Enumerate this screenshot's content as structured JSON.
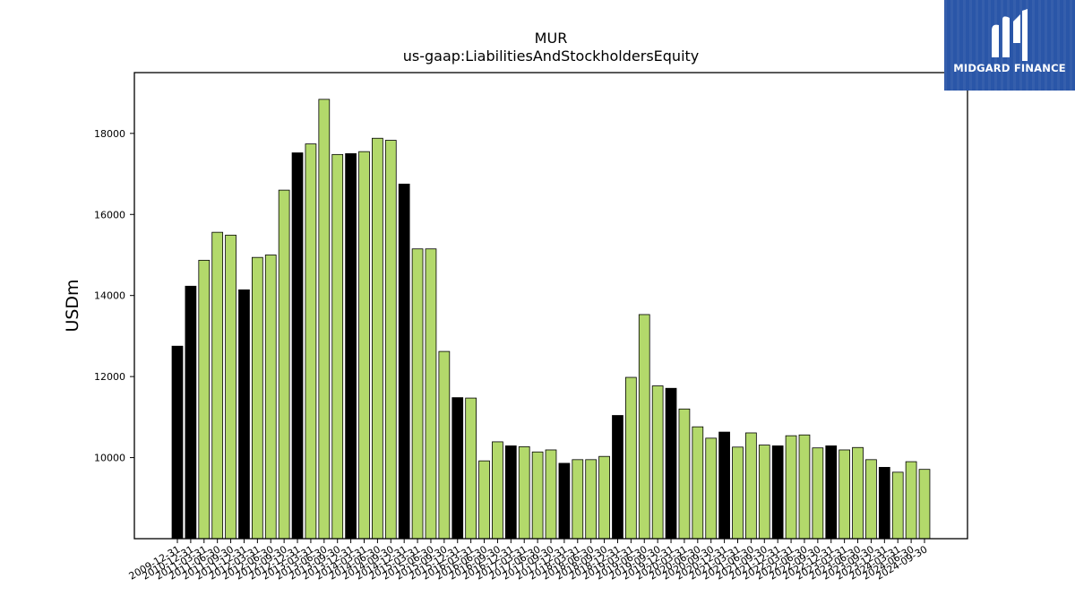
{
  "brand": {
    "name": "MIDGARD FINANCE",
    "bg": "#2a56a8"
  },
  "chart_data": {
    "type": "bar",
    "title": "MUR",
    "subtitle": "us-gaap:LiabilitiesAndStockholdersEquity",
    "ylabel": "USDm",
    "xlabel": "",
    "ylim": [
      8000,
      19500
    ],
    "yticks": [
      10000,
      12000,
      14000,
      16000,
      18000
    ],
    "grid": false,
    "colors": {
      "annual": "#000000",
      "quarterly": "#b3d96b",
      "edge": "#000000"
    },
    "categories": [
      "2009-12-31",
      "2010-12-31",
      "2011-03-31",
      "2011-06-30",
      "2011-09-30",
      "2011-12-31",
      "2012-03-31",
      "2012-06-30",
      "2012-09-30",
      "2012-12-31",
      "2013-03-31",
      "2013-06-30",
      "2013-09-30",
      "2013-12-31",
      "2014-03-31",
      "2014-06-30",
      "2014-09-30",
      "2014-12-31",
      "2015-03-31",
      "2015-06-30",
      "2015-09-30",
      "2015-12-31",
      "2016-03-31",
      "2016-06-30",
      "2016-09-30",
      "2016-12-31",
      "2017-03-31",
      "2017-06-30",
      "2017-09-30",
      "2017-12-31",
      "2018-03-31",
      "2018-06-30",
      "2018-09-30",
      "2018-12-31",
      "2019-03-31",
      "2019-06-30",
      "2019-09-30",
      "2019-12-31",
      "2020-03-31",
      "2020-06-30",
      "2020-09-30",
      "2020-12-31",
      "2021-03-31",
      "2021-06-30",
      "2021-09-30",
      "2021-12-31",
      "2022-03-31",
      "2022-06-30",
      "2022-09-30",
      "2022-12-31",
      "2023-03-31",
      "2023-06-30",
      "2023-09-30",
      "2023-12-31",
      "2024-03-31",
      "2024-06-30",
      "2024-09-30"
    ],
    "values": [
      12750,
      14230,
      14870,
      15560,
      15490,
      14140,
      14940,
      15000,
      16600,
      17520,
      17740,
      18840,
      17480,
      17500,
      17550,
      17880,
      17830,
      16750,
      15150,
      15150,
      12620,
      11480,
      11470,
      9920,
      10390,
      10290,
      10270,
      10140,
      10190,
      9860,
      9950,
      9950,
      10030,
      11040,
      11980,
      13530,
      11770,
      11710,
      11200,
      10760,
      10480,
      10630,
      10260,
      10610,
      10310,
      10290,
      10540,
      10560,
      10240,
      10290,
      10190,
      10250,
      9950,
      9760,
      9640,
      9900,
      9710
    ],
    "annual_flags": [
      true,
      true,
      false,
      false,
      false,
      true,
      false,
      false,
      false,
      true,
      false,
      false,
      false,
      true,
      false,
      false,
      false,
      true,
      false,
      false,
      false,
      true,
      false,
      false,
      false,
      true,
      false,
      false,
      false,
      true,
      false,
      false,
      false,
      true,
      false,
      false,
      false,
      true,
      false,
      false,
      false,
      true,
      false,
      false,
      false,
      true,
      false,
      false,
      false,
      true,
      false,
      false,
      false,
      true,
      false,
      false,
      false
    ]
  }
}
